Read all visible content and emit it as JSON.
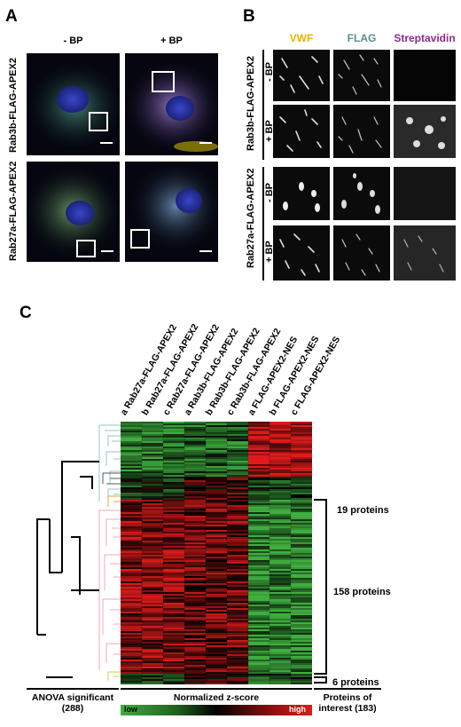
{
  "panel_a": {
    "letter": "A",
    "col_headers": [
      "- BP",
      "+ BP"
    ],
    "row_labels": [
      "Rab3b-FLAG-APEX2",
      "Rab27a-FLAG-APEX2"
    ]
  },
  "panel_b": {
    "letter": "B",
    "col_headers": [
      "VWF",
      "FLAG",
      "Streptavidin"
    ],
    "col_colors": [
      "#e8b400",
      "#5a8f8f",
      "#8a2a8a"
    ],
    "row_groups": [
      {
        "name": "Rab3b-FLAG-APEX2",
        "conditions": [
          "- BP",
          "+ BP"
        ]
      },
      {
        "name": "Rab27a-FLAG-APEX2",
        "conditions": [
          "- BP",
          "+ BP"
        ]
      }
    ]
  },
  "panel_c": {
    "letter": "C",
    "samples": [
      "a Rab27a-FLAG-APEX2",
      "b Rab27a-FLAG-APEX2",
      "c Rab27a-FLAG-APEX2",
      "a Rab3b-FLAG-APEX2",
      "b Rab3b-FLAG-APEX2",
      "c Rab3b-FLAG-APEX2",
      "a FLAG-APEX2-NES",
      "b FLAG-APEX2-NES",
      "c FLAG-APEX2-NES"
    ],
    "protein_groups": [
      "19 proteins",
      "158 proteins",
      "6 proteins"
    ],
    "footer_left": "ANOVA significant (288)",
    "footer_center": "Normalized z-score",
    "footer_right": "Proteins of interest (183)",
    "scale_low": "low",
    "scale_high": "high",
    "colors": {
      "low": "#3fae3f",
      "mid": "#000000",
      "high": "#e11b1b"
    }
  }
}
